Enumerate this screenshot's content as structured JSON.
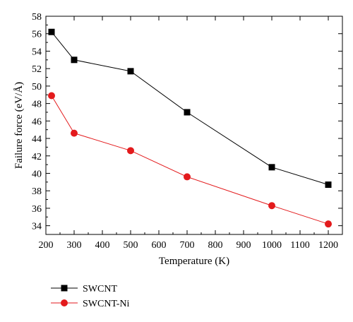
{
  "chart_data": {
    "type": "line",
    "title": "",
    "xlabel": "Temperature (K)",
    "ylabel": "Failure force (eV/Å)",
    "xlim": [
      200,
      1250
    ],
    "ylim": [
      33,
      58
    ],
    "x_ticks": [
      200,
      300,
      400,
      500,
      600,
      700,
      800,
      900,
      1000,
      1100,
      1200
    ],
    "y_ticks": [
      34,
      36,
      38,
      40,
      42,
      44,
      46,
      48,
      50,
      52,
      54,
      56,
      58
    ],
    "grid": false,
    "legend_position": "bottom-left, below plot",
    "series": [
      {
        "name": "SWCNT",
        "color": "#000000",
        "marker": "square",
        "x": [
          220,
          300,
          500,
          700,
          1000,
          1200
        ],
        "y": [
          56.2,
          53.0,
          51.7,
          47.0,
          40.7,
          38.7
        ]
      },
      {
        "name": "SWCNT-Ni",
        "color": "#e31a1c",
        "marker": "circle",
        "x": [
          220,
          300,
          500,
          700,
          1000,
          1200
        ],
        "y": [
          48.9,
          44.6,
          42.6,
          39.6,
          36.3,
          34.2
        ]
      }
    ]
  }
}
